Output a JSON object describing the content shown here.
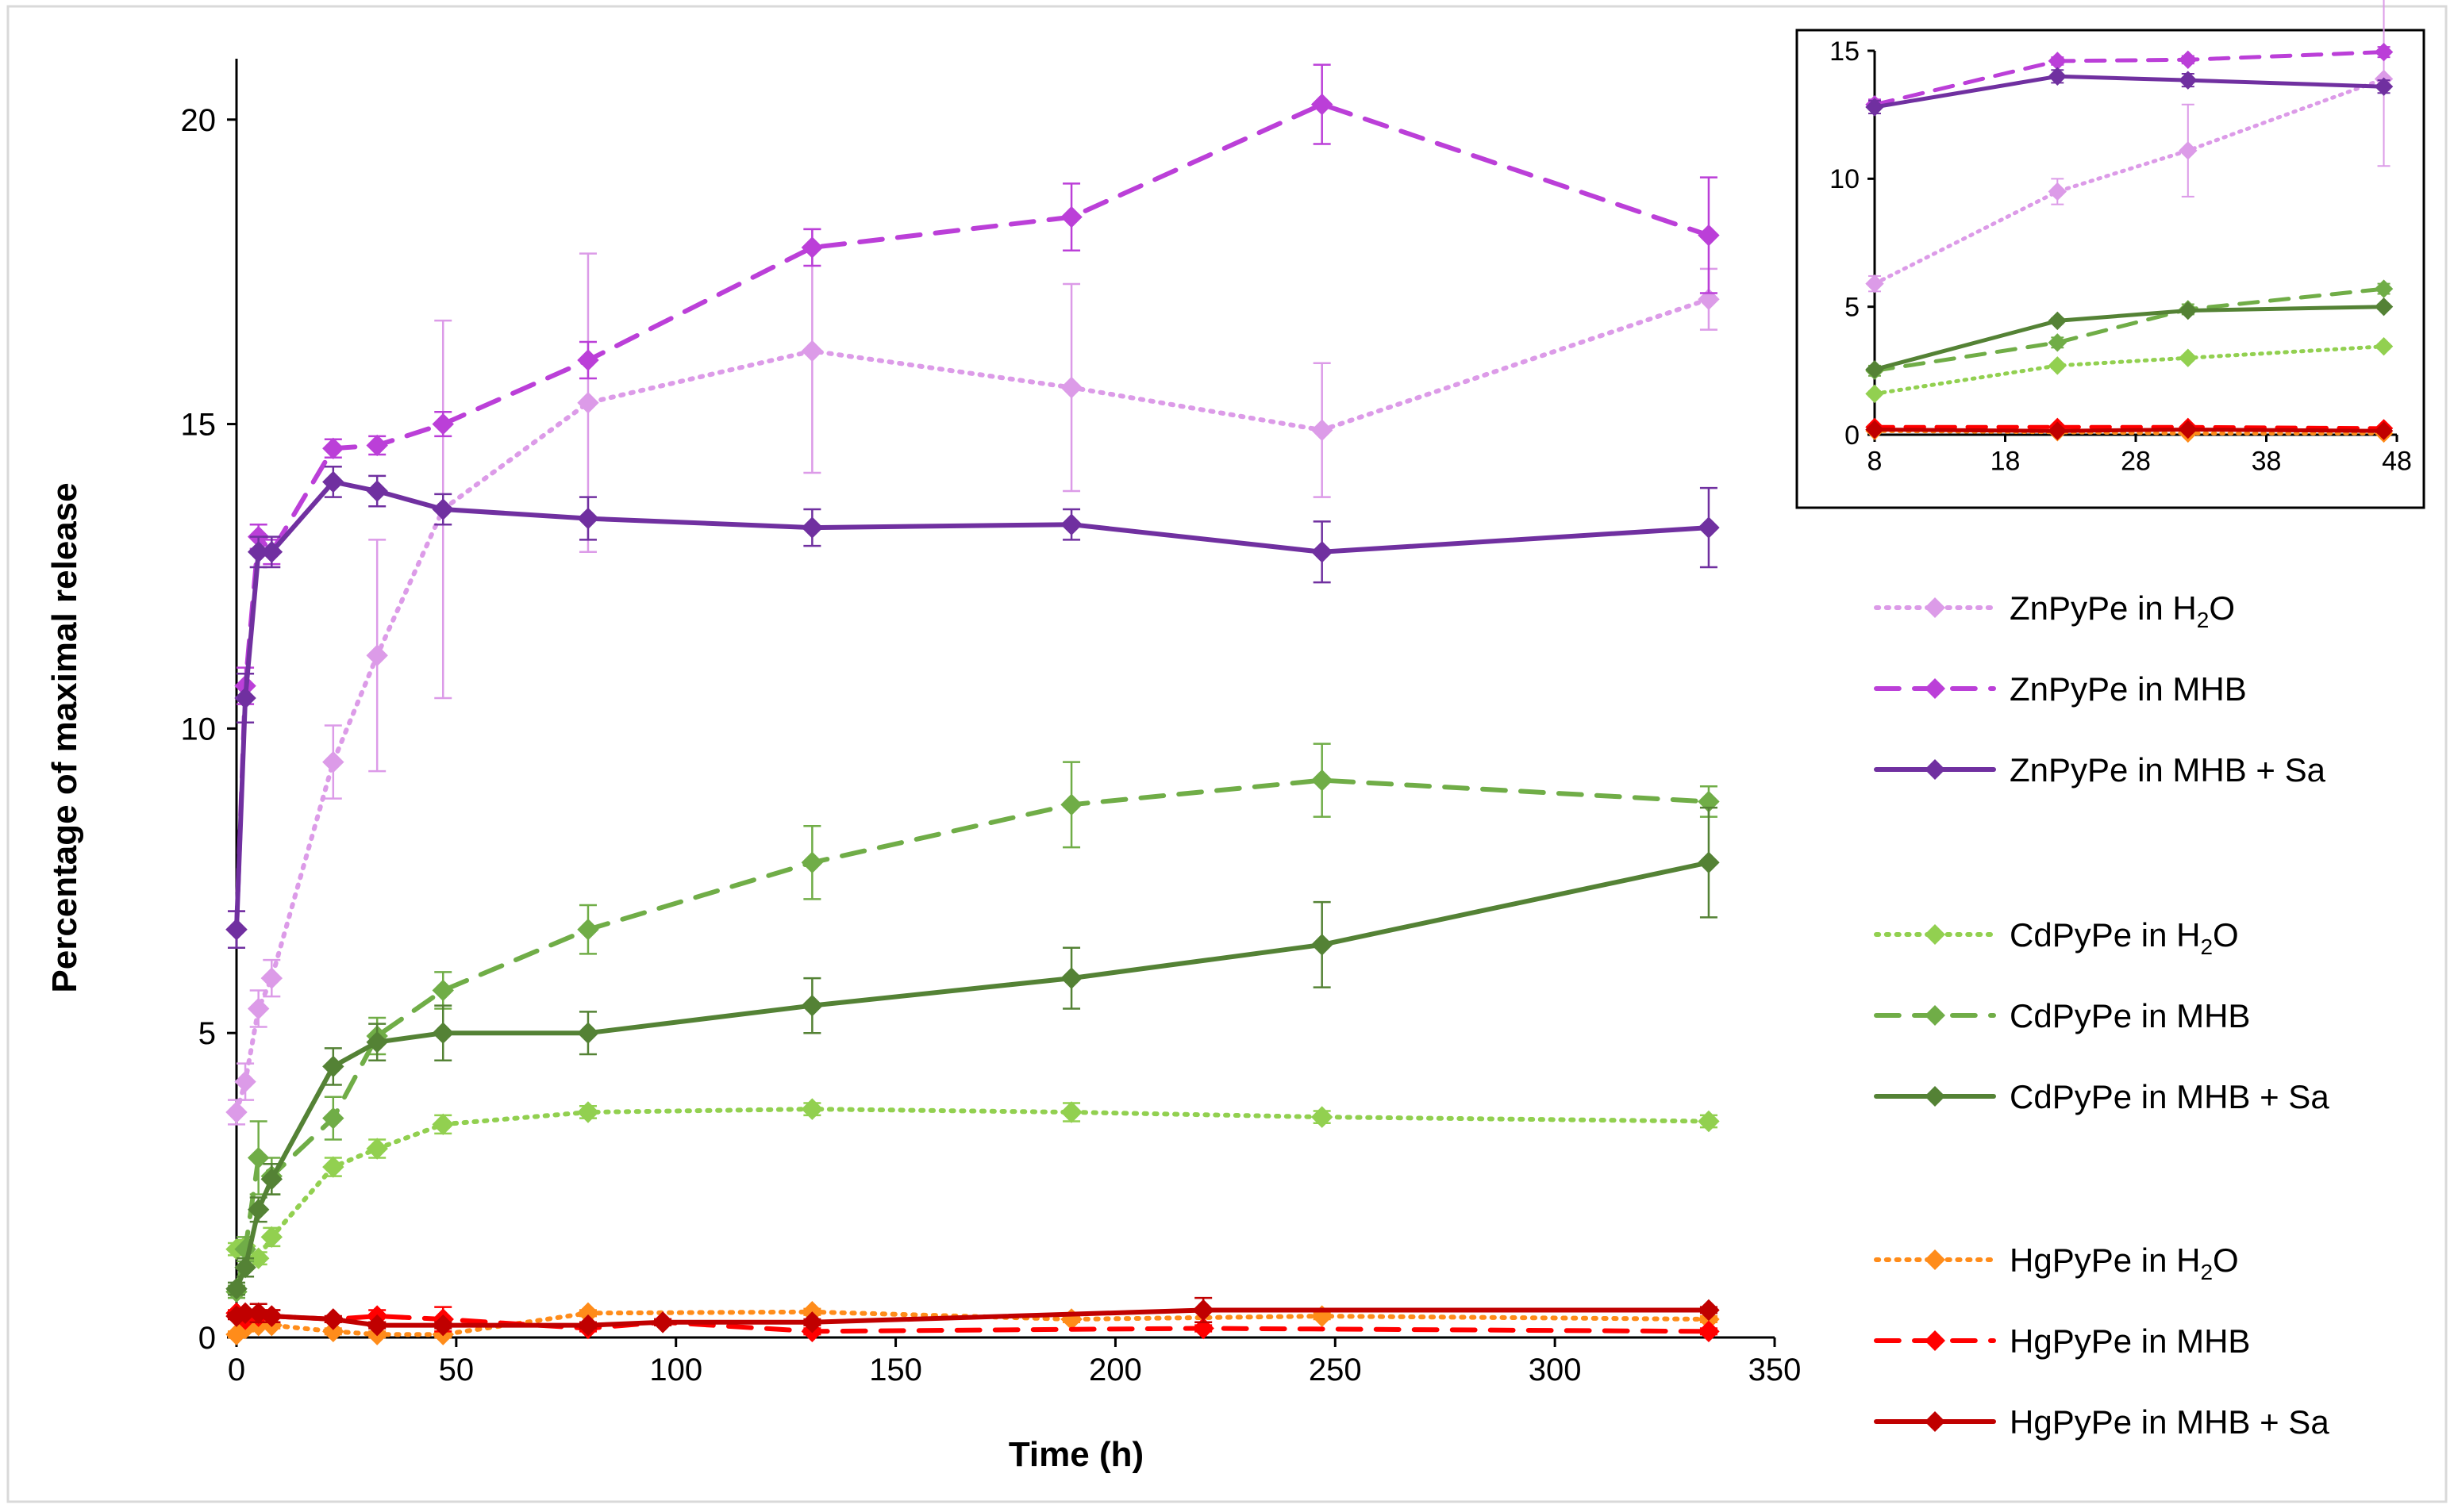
{
  "chart_data": [
    {
      "type": "line",
      "title": "",
      "xlabel": "Time (h)",
      "ylabel": "Percentage of maximal release",
      "xlim": [
        0,
        350
      ],
      "ylim": [
        0,
        21
      ],
      "xticks": [
        0,
        50,
        100,
        150,
        200,
        250,
        300,
        350
      ],
      "yticks": [
        0,
        5,
        10,
        15,
        20
      ],
      "grid": false,
      "legend_position": "right",
      "series": [
        {
          "name": "ZnPyPe in H2O",
          "name_main": "ZnPyPe in H",
          "name_sub": "2",
          "name_tail": "O",
          "color": "#dc9be8",
          "dash": "dot",
          "x": [
            0,
            2,
            5,
            8,
            22,
            32,
            47,
            80,
            131,
            190,
            247,
            335
          ],
          "y": [
            3.7,
            4.2,
            5.4,
            5.9,
            9.45,
            11.2,
            13.6,
            15.35,
            16.2,
            15.6,
            14.9,
            17.05
          ],
          "err": [
            0.2,
            0.3,
            0.3,
            0.3,
            0.6,
            1.9,
            3.1,
            2.45,
            2.0,
            1.7,
            1.1,
            0.5
          ]
        },
        {
          "name": "ZnPyPe in MHB",
          "color": "#bb3fd8",
          "dash": "dash",
          "x": [
            0,
            2,
            5,
            8,
            22,
            32,
            47,
            80,
            131,
            190,
            247,
            335
          ],
          "y": [
            6.7,
            10.7,
            13.15,
            12.9,
            14.6,
            14.65,
            15.0,
            16.05,
            17.9,
            18.4,
            20.25,
            18.1
          ],
          "err": [
            0.3,
            0.3,
            0.2,
            0.2,
            0.15,
            0.15,
            0.2,
            0.3,
            0.3,
            0.55,
            0.65,
            0.95
          ]
        },
        {
          "name": "ZnPyPe in MHB + Sa",
          "color": "#7030a0",
          "dash": "solid",
          "x": [
            0,
            2,
            5,
            8,
            22,
            32,
            47,
            80,
            131,
            190,
            247,
            335
          ],
          "y": [
            6.7,
            10.5,
            12.9,
            12.9,
            14.05,
            13.9,
            13.6,
            13.45,
            13.3,
            13.35,
            12.9,
            13.3
          ],
          "err": [
            0.3,
            0.4,
            0.25,
            0.25,
            0.25,
            0.25,
            0.25,
            0.35,
            0.3,
            0.25,
            0.5,
            0.65
          ]
        },
        {
          "name": "CdPyPe in H2O",
          "name_main": "CdPyPe in H",
          "name_sub": "2",
          "name_tail": "O",
          "color": "#92d050",
          "dash": "dot",
          "x": [
            0,
            2,
            5,
            8,
            22,
            32,
            47,
            80,
            131,
            190,
            247,
            335
          ],
          "y": [
            1.45,
            1.5,
            1.3,
            1.65,
            2.8,
            3.1,
            3.5,
            3.7,
            3.75,
            3.7,
            3.62,
            3.55
          ],
          "err": [
            0.1,
            0.1,
            0.1,
            0.15,
            0.15,
            0.15,
            0.15,
            0.1,
            0.1,
            0.15,
            0.1,
            0.1
          ]
        },
        {
          "name": "CdPyPe in MHB",
          "color": "#70ad47",
          "dash": "dash",
          "x": [
            0,
            2,
            5,
            8,
            22,
            32,
            47,
            80,
            131,
            190,
            247,
            335
          ],
          "y": [
            0.75,
            1.45,
            2.95,
            2.65,
            3.6,
            4.95,
            5.7,
            6.7,
            7.8,
            8.75,
            9.15,
            8.8
          ],
          "err": [
            0.1,
            0.2,
            0.6,
            0.3,
            0.35,
            0.3,
            0.3,
            0.4,
            0.6,
            0.7,
            0.6,
            0.25
          ]
        },
        {
          "name": "CdPyPe in MHB + Sa",
          "color": "#548235",
          "dash": "solid",
          "x": [
            0,
            2,
            5,
            8,
            22,
            32,
            47,
            80,
            131,
            190,
            247,
            335
          ],
          "y": [
            0.8,
            1.15,
            2.1,
            2.6,
            4.45,
            4.85,
            5.0,
            5.0,
            5.45,
            5.9,
            6.45,
            7.8
          ],
          "err": [
            0.1,
            0.15,
            0.2,
            0.25,
            0.3,
            0.3,
            0.45,
            0.35,
            0.45,
            0.5,
            0.7,
            0.9
          ]
        },
        {
          "name": "HgPyPe in H2O",
          "name_main": "HgPyPe in H",
          "name_sub": "2",
          "name_tail": "O",
          "color": "#ff8c1a",
          "dash": "dot",
          "x": [
            0,
            2,
            5,
            8,
            22,
            32,
            47,
            80,
            131,
            190,
            247,
            335
          ],
          "y": [
            0.05,
            0.15,
            0.2,
            0.2,
            0.1,
            0.05,
            0.05,
            0.4,
            0.42,
            0.3,
            0.35,
            0.3
          ],
          "err": [
            0.05,
            0.05,
            0.05,
            0.05,
            0.05,
            0.05,
            0.05,
            0.05,
            0.05,
            0.05,
            0.05,
            0.05
          ]
        },
        {
          "name": "HgPyPe in MHB",
          "color": "#ff0000",
          "dash": "dash",
          "x": [
            0,
            2,
            5,
            8,
            22,
            32,
            47,
            80,
            97,
            131,
            220,
            335
          ],
          "y": [
            0.4,
            0.3,
            0.35,
            0.35,
            0.3,
            0.35,
            0.3,
            0.15,
            0.25,
            0.1,
            0.15,
            0.1
          ],
          "err": [
            0.05,
            0.05,
            0.1,
            0.1,
            0.05,
            0.1,
            0.2,
            0.05,
            0.05,
            0.05,
            0.05,
            0.05
          ]
        },
        {
          "name": "HgPyPe in MHB + Sa",
          "color": "#c00000",
          "dash": "solid",
          "x": [
            0,
            2,
            5,
            8,
            22,
            32,
            47,
            80,
            97,
            131,
            220,
            335
          ],
          "y": [
            0.35,
            0.4,
            0.4,
            0.35,
            0.3,
            0.2,
            0.2,
            0.2,
            0.25,
            0.25,
            0.45,
            0.45
          ],
          "err": [
            0.05,
            0.05,
            0.15,
            0.1,
            0.05,
            0.05,
            0.05,
            0.05,
            0.05,
            0.05,
            0.2,
            0.05
          ]
        }
      ]
    },
    {
      "type": "line",
      "title": "",
      "xlabel": "",
      "ylabel": "",
      "xlim": [
        8,
        48
      ],
      "ylim": [
        0,
        15
      ],
      "xticks": [
        8,
        18,
        28,
        38,
        48
      ],
      "yticks": [
        0,
        5,
        10,
        15
      ],
      "legend_position": "none",
      "series": [
        {
          "name": "ZnPyPe in H2O",
          "color": "#dc9be8",
          "dash": "dot",
          "x": [
            8,
            22,
            32,
            47
          ],
          "y": [
            5.9,
            9.5,
            11.1,
            13.9
          ],
          "err": [
            0.3,
            0.5,
            1.8,
            3.4
          ]
        },
        {
          "name": "ZnPyPe in MHB",
          "color": "#bb3fd8",
          "dash": "dash",
          "x": [
            8,
            22,
            32,
            47
          ],
          "y": [
            12.9,
            14.6,
            14.65,
            14.95
          ],
          "err": [
            0.2,
            0.15,
            0.15,
            0.2
          ]
        },
        {
          "name": "ZnPyPe in MHB + Sa",
          "color": "#7030a0",
          "dash": "solid",
          "x": [
            8,
            22,
            32,
            47
          ],
          "y": [
            12.8,
            14.0,
            13.85,
            13.6
          ],
          "err": [
            0.25,
            0.25,
            0.25,
            0.25
          ]
        },
        {
          "name": "CdPyPe in H2O",
          "color": "#92d050",
          "dash": "dot",
          "x": [
            8,
            22,
            32,
            47
          ],
          "y": [
            1.6,
            2.7,
            3.0,
            3.45
          ],
          "err": [
            0.1,
            0.1,
            0.1,
            0.1
          ]
        },
        {
          "name": "CdPyPe in MHB",
          "color": "#70ad47",
          "dash": "dash",
          "x": [
            8,
            22,
            32,
            47
          ],
          "y": [
            2.5,
            3.6,
            4.9,
            5.7
          ],
          "err": [
            0.2,
            0.2,
            0.2,
            0.2
          ]
        },
        {
          "name": "CdPyPe in MHB + Sa",
          "color": "#548235",
          "dash": "solid",
          "x": [
            8,
            22,
            32,
            47
          ],
          "y": [
            2.55,
            4.45,
            4.85,
            5.0
          ],
          "err": [
            0.1,
            0.1,
            0.1,
            0.1
          ]
        },
        {
          "name": "HgPyPe in H2O",
          "color": "#ff8c1a",
          "dash": "dot",
          "x": [
            8,
            22,
            32,
            47
          ],
          "y": [
            0.15,
            0.1,
            0.05,
            0.05
          ],
          "err": [
            0.02,
            0.02,
            0.02,
            0.02
          ]
        },
        {
          "name": "HgPyPe in MHB",
          "color": "#ff0000",
          "dash": "dash",
          "x": [
            8,
            22,
            32,
            47
          ],
          "y": [
            0.3,
            0.3,
            0.3,
            0.25
          ],
          "err": [
            0.02,
            0.02,
            0.02,
            0.02
          ]
        },
        {
          "name": "HgPyPe in MHB + Sa",
          "color": "#c00000",
          "dash": "solid",
          "x": [
            8,
            22,
            32,
            47
          ],
          "y": [
            0.2,
            0.15,
            0.2,
            0.15
          ],
          "err": [
            0.02,
            0.02,
            0.02,
            0.02
          ]
        }
      ]
    }
  ]
}
